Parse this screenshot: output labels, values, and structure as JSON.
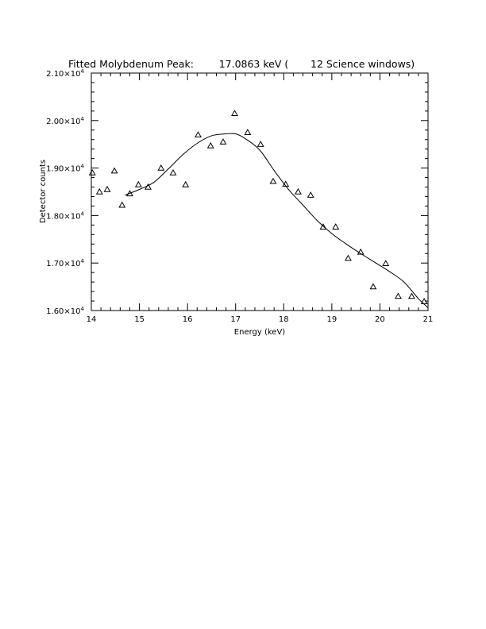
{
  "chart_data": {
    "type": "scatter",
    "title": "Fitted Molybdenum Peak:        17.0863 keV (       12 Science windows)",
    "xlabel": "Energy (keV)",
    "ylabel": "Detector counts",
    "xlim": [
      14,
      21
    ],
    "ylim": [
      16000,
      21000
    ],
    "grid": false,
    "x_ticks": [
      14,
      15,
      16,
      17,
      18,
      19,
      20,
      21
    ],
    "x_tick_labels": [
      "14",
      "15",
      "16",
      "17",
      "18",
      "19",
      "20",
      "21"
    ],
    "y_ticks": [
      16000,
      17000,
      18000,
      19000,
      20000,
      21000
    ],
    "y_tick_labels": [
      "1.60×10",
      "1.70×10",
      "1.80×10",
      "1.90×10",
      "2.00×10",
      "2.10×10"
    ],
    "y_tick_exponent": "4",
    "series": [
      {
        "marker": "triangle",
        "x": [
          14.02,
          14.17,
          14.33,
          14.48,
          14.64,
          14.8,
          14.98,
          15.18,
          15.45,
          15.7,
          15.96,
          16.22,
          16.48,
          16.74,
          16.98,
          17.25,
          17.52,
          17.78,
          18.04,
          18.3,
          18.56,
          18.82,
          19.08,
          19.34,
          19.6,
          19.86,
          20.12,
          20.38,
          20.66,
          20.92
        ],
        "y": [
          18900,
          18500,
          18550,
          18940,
          18220,
          18460,
          18650,
          18600,
          19000,
          18900,
          18650,
          19700,
          19470,
          19550,
          20150,
          19750,
          19500,
          18720,
          18660,
          18500,
          18430,
          17760,
          17760,
          17100,
          17230,
          16500,
          16990,
          16300,
          16300,
          16190
        ]
      },
      {
        "style": "line",
        "x": [
          14.7,
          15.0,
          15.3,
          15.6,
          15.9,
          16.2,
          16.5,
          16.8,
          17.0,
          17.2,
          17.5,
          17.8,
          18.1,
          18.4,
          18.7,
          19.0,
          19.3,
          19.6,
          19.9,
          20.2,
          20.5,
          20.8,
          21.0
        ],
        "y": [
          18430,
          18550,
          18700,
          18980,
          19280,
          19520,
          19680,
          19720,
          19720,
          19620,
          19380,
          18950,
          18550,
          18220,
          17890,
          17620,
          17400,
          17200,
          17010,
          16820,
          16600,
          16250,
          16060
        ]
      }
    ]
  }
}
